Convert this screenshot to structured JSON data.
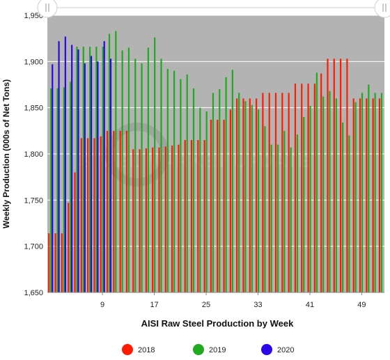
{
  "chart_data": {
    "type": "bar",
    "title": "",
    "xlabel": "AISI Raw Steel Production by Week",
    "ylabel": "Weekly Production (000s of Net Tons)",
    "ylim": [
      1650,
      1950
    ],
    "yticks": [
      1650,
      1700,
      1750,
      1800,
      1850,
      1900,
      1950
    ],
    "ytick_labels": [
      "1,650",
      "1,700",
      "1,750",
      "1,800",
      "1,850",
      "1,900",
      "1,950"
    ],
    "xlim": [
      1,
      52
    ],
    "xticks": [
      9,
      17,
      25,
      33,
      41,
      49
    ],
    "plot_background": "#b3b3b3",
    "grid": true,
    "legend_position": "bottom",
    "watermark": "STEEL MARKET UPDATE",
    "series": [
      {
        "name": "2018",
        "color": "#ff1a00",
        "x": [
          1,
          2,
          3,
          4,
          5,
          6,
          7,
          8,
          9,
          10,
          11,
          12,
          13,
          14,
          15,
          16,
          17,
          18,
          19,
          20,
          21,
          22,
          23,
          24,
          25,
          26,
          27,
          28,
          29,
          30,
          31,
          32,
          33,
          34,
          35,
          36,
          37,
          38,
          39,
          40,
          41,
          42,
          43,
          44,
          45,
          46,
          47,
          48,
          49,
          50,
          51,
          52
        ],
        "values": [
          1714,
          1714,
          1714,
          1747,
          1780,
          1817,
          1817,
          1817,
          1819,
          1825,
          1825,
          1825,
          1825,
          1805,
          1805,
          1806,
          1807,
          1807,
          1808,
          1809,
          1810,
          1815,
          1815,
          1815,
          1815,
          1837,
          1837,
          1837,
          1848,
          1860,
          1860,
          1860,
          1860,
          1866,
          1866,
          1866,
          1866,
          1866,
          1876,
          1876,
          1876,
          1876,
          1887,
          1903,
          1903,
          1903,
          1903,
          1860,
          1860,
          1860,
          1860,
          1860
        ]
      },
      {
        "name": "2019",
        "color": "#1faa1f",
        "x": [
          1,
          2,
          3,
          4,
          5,
          6,
          7,
          8,
          9,
          10,
          11,
          12,
          13,
          14,
          15,
          16,
          17,
          18,
          19,
          20,
          21,
          22,
          23,
          24,
          25,
          26,
          27,
          28,
          29,
          30,
          31,
          32,
          33,
          34,
          35,
          36,
          37,
          38,
          39,
          40,
          41,
          42,
          43,
          44,
          45,
          46,
          47,
          48,
          49,
          50,
          51,
          52
        ],
        "values": [
          1871,
          1871,
          1872,
          1878,
          1916,
          1916,
          1916,
          1916,
          1916,
          1930,
          1933,
          1912,
          1915,
          1903,
          1898,
          1915,
          1926,
          1903,
          1892,
          1890,
          1881,
          1886,
          1871,
          1850,
          1846,
          1866,
          1870,
          1883,
          1891,
          1866,
          1857,
          1853,
          1848,
          1830,
          1810,
          1810,
          1825,
          1807,
          1821,
          1840,
          1852,
          1888,
          1862,
          1868,
          1860,
          1834,
          1820,
          1856,
          1866,
          1875,
          1866,
          1866
        ]
      },
      {
        "name": "2020",
        "color": "#2b06e8",
        "x": [
          1,
          2,
          3,
          4,
          5,
          6,
          7,
          8,
          9,
          10
        ],
        "values": [
          1897,
          1922,
          1927,
          1918,
          1913,
          1898,
          1906,
          1900,
          1922,
          1903
        ]
      }
    ]
  }
}
